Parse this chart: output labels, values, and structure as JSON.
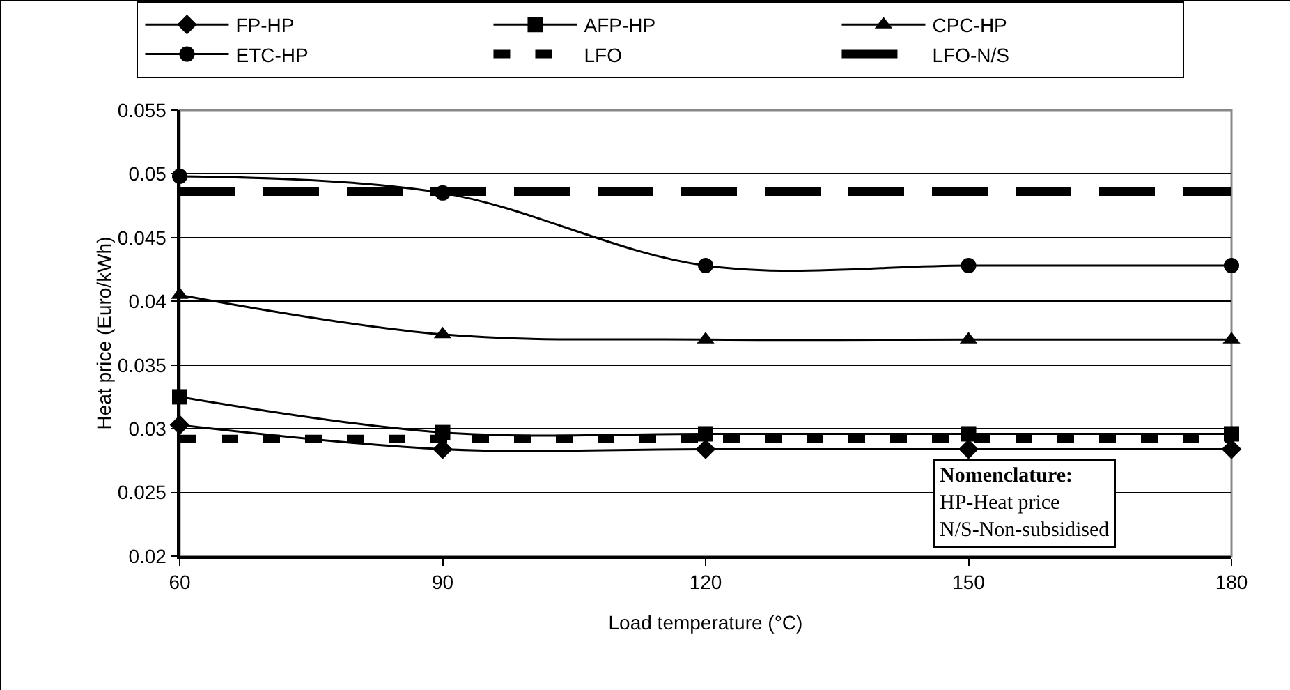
{
  "chart_data": {
    "type": "line",
    "x": [
      60,
      90,
      120,
      150,
      180
    ],
    "series": [
      {
        "name": "FP-HP",
        "color": "#000000",
        "marker": "diamond",
        "line_style": "solid",
        "values": [
          0.0303,
          0.0284,
          0.0284,
          0.0284,
          0.0284
        ]
      },
      {
        "name": "AFP-HP",
        "color": "#000000",
        "marker": "square",
        "line_style": "solid",
        "values": [
          0.0325,
          0.0297,
          0.0296,
          0.0296,
          0.0296
        ]
      },
      {
        "name": "CPC-HP",
        "color": "#000000",
        "marker": "triangle",
        "line_style": "solid",
        "values": [
          0.0405,
          0.0374,
          0.037,
          0.037,
          0.037
        ]
      },
      {
        "name": "ETC-HP",
        "color": "#000000",
        "marker": "circle",
        "line_style": "solid",
        "values": [
          0.0498,
          0.0485,
          0.0428,
          0.0428,
          0.0428
        ]
      },
      {
        "name": "LFO",
        "color": "#000000",
        "marker": "none",
        "line_style": "dashed",
        "values": [
          0.0292,
          0.0292,
          0.0292,
          0.0292,
          0.0292
        ]
      },
      {
        "name": "LFO-N/S",
        "color": "#000000",
        "marker": "none",
        "line_style": "dashed",
        "values": [
          0.0486,
          0.0486,
          0.0486,
          0.0486,
          0.0486
        ]
      }
    ],
    "xlabel": "Load temperature (°C)",
    "ylabel": "Heat price (Euro/kWh)",
    "xlim": [
      60,
      180
    ],
    "xticks": [
      60,
      90,
      120,
      150,
      180
    ],
    "ylim": [
      0.02,
      0.055
    ],
    "yticks": [
      0.02,
      0.025,
      0.03,
      0.035,
      0.04,
      0.045,
      0.05,
      0.055
    ],
    "grid": "y",
    "legend": "top",
    "annotations": [
      "Nomenclature:",
      "HP-Heat price",
      "N/S-Non-subsidised"
    ]
  }
}
